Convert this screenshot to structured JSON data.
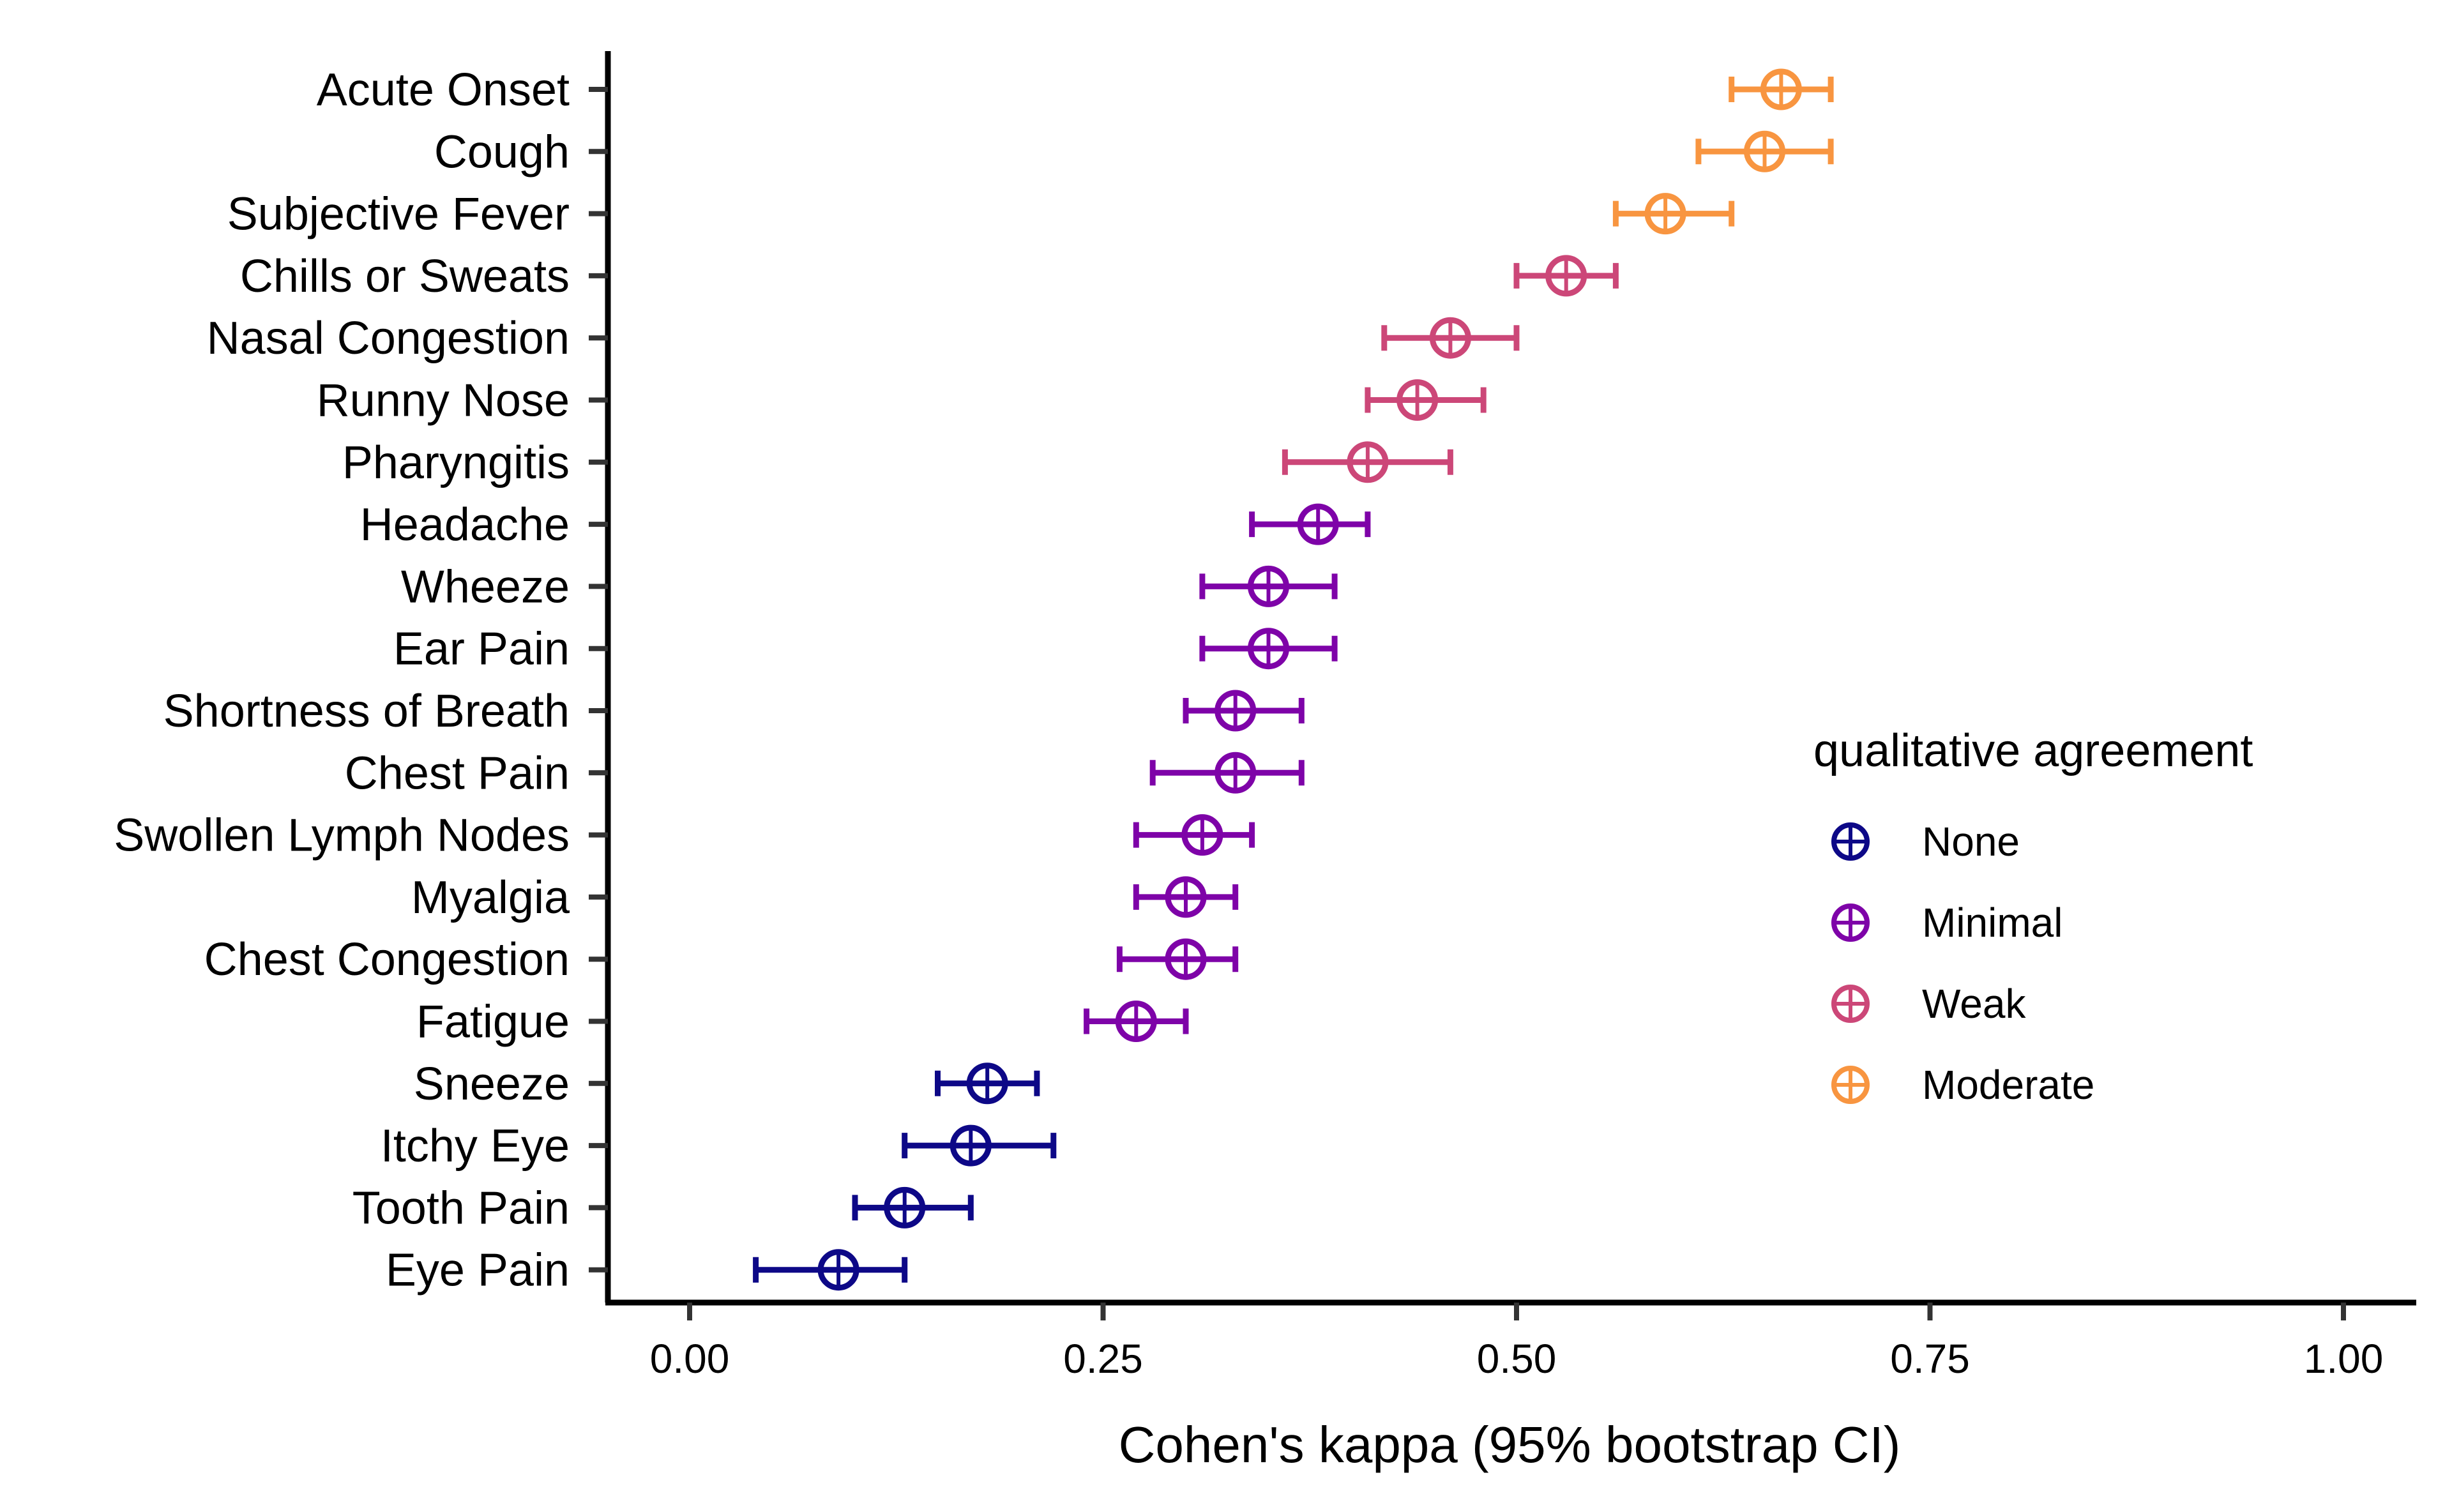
{
  "chart_data": {
    "type": "scatter",
    "subtype": "forest-plot-with-error-bars",
    "xlabel": "Cohen's kappa (95% bootstrap CI)",
    "xlim": [
      -0.1,
      1.05
    ],
    "xticks": [
      "0.00",
      "0.25",
      "0.50",
      "0.75",
      "1.00"
    ],
    "xtick_values": [
      0,
      0.25,
      0.5,
      0.75,
      1.0
    ],
    "grid": false,
    "legend": {
      "title": "qualitative agreement",
      "position": "right",
      "entries": [
        {
          "label": "None",
          "color": "#0d0887"
        },
        {
          "label": "Minimal",
          "color": "#7e03a8"
        },
        {
          "label": "Weak",
          "color": "#cc4778"
        },
        {
          "label": "Moderate",
          "color": "#f89540"
        }
      ]
    },
    "points": [
      {
        "label": "Acute Onset",
        "kappa": 0.66,
        "lower": 0.63,
        "upper": 0.69,
        "group": "Moderate"
      },
      {
        "label": "Cough",
        "kappa": 0.65,
        "lower": 0.61,
        "upper": 0.69,
        "group": "Moderate"
      },
      {
        "label": "Subjective Fever",
        "kappa": 0.59,
        "lower": 0.56,
        "upper": 0.63,
        "group": "Moderate"
      },
      {
        "label": "Chills or Sweats",
        "kappa": 0.53,
        "lower": 0.5,
        "upper": 0.56,
        "group": "Weak"
      },
      {
        "label": "Nasal Congestion",
        "kappa": 0.46,
        "lower": 0.42,
        "upper": 0.5,
        "group": "Weak"
      },
      {
        "label": "Runny Nose",
        "kappa": 0.44,
        "lower": 0.41,
        "upper": 0.48,
        "group": "Weak"
      },
      {
        "label": "Pharyngitis",
        "kappa": 0.41,
        "lower": 0.36,
        "upper": 0.46,
        "group": "Weak"
      },
      {
        "label": "Headache",
        "kappa": 0.38,
        "lower": 0.34,
        "upper": 0.41,
        "group": "Minimal"
      },
      {
        "label": "Wheeze",
        "kappa": 0.35,
        "lower": 0.31,
        "upper": 0.39,
        "group": "Minimal"
      },
      {
        "label": "Ear Pain",
        "kappa": 0.35,
        "lower": 0.31,
        "upper": 0.39,
        "group": "Minimal"
      },
      {
        "label": "Shortness of Breath",
        "kappa": 0.33,
        "lower": 0.3,
        "upper": 0.37,
        "group": "Minimal"
      },
      {
        "label": "Chest Pain",
        "kappa": 0.33,
        "lower": 0.28,
        "upper": 0.37,
        "group": "Minimal"
      },
      {
        "label": "Swollen Lymph Nodes",
        "kappa": 0.31,
        "lower": 0.27,
        "upper": 0.34,
        "group": "Minimal"
      },
      {
        "label": "Myalgia",
        "kappa": 0.3,
        "lower": 0.27,
        "upper": 0.33,
        "group": "Minimal"
      },
      {
        "label": "Chest Congestion",
        "kappa": 0.3,
        "lower": 0.26,
        "upper": 0.33,
        "group": "Minimal"
      },
      {
        "label": "Fatigue",
        "kappa": 0.27,
        "lower": 0.24,
        "upper": 0.3,
        "group": "Minimal"
      },
      {
        "label": "Sneeze",
        "kappa": 0.18,
        "lower": 0.15,
        "upper": 0.21,
        "group": "None"
      },
      {
        "label": "Itchy Eye",
        "kappa": 0.17,
        "lower": 0.13,
        "upper": 0.22,
        "group": "None"
      },
      {
        "label": "Tooth Pain",
        "kappa": 0.13,
        "lower": 0.1,
        "upper": 0.17,
        "group": "None"
      },
      {
        "label": "Eye Pain",
        "kappa": 0.09,
        "lower": 0.04,
        "upper": 0.13,
        "group": "None"
      }
    ]
  }
}
